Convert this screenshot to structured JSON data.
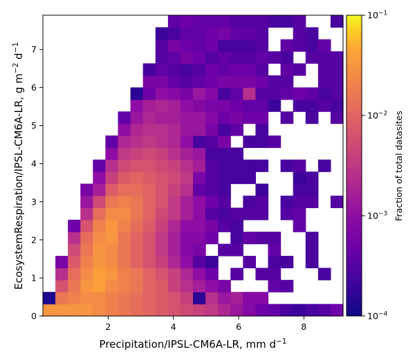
{
  "chart_data": {
    "type": "heatmap",
    "xlabel": "Precipitation/IPSL-CM6A-LR,  mm d",
    "xlabel_sup": "−1",
    "ylabel": "EcosystemRespiration/IPSL-CM6A-LR,  g m",
    "ylabel_sup1": "−2",
    "ylabel_mid": " d",
    "ylabel_sup2": "−1",
    "xlim": [
      0.0,
      9.2
    ],
    "ylim": [
      0.0,
      7.9
    ],
    "xticks": [
      2,
      4,
      6,
      8
    ],
    "yticks": [
      0,
      1,
      2,
      3,
      4,
      5,
      6,
      7
    ],
    "x_tick_labels": [
      "2",
      "4",
      "6",
      "8"
    ],
    "y_tick_labels": [
      "0",
      "1",
      "2",
      "3",
      "4",
      "5",
      "6",
      "7"
    ],
    "colormap": "plasma",
    "color_scale": "log",
    "colorbar": {
      "label": "Fraction of total datasites",
      "range": [
        0.0001,
        0.1
      ],
      "tick_values": [
        0.0001,
        0.001,
        0.01,
        0.1
      ],
      "tick_base": [
        "10",
        "10",
        "10",
        "10"
      ],
      "tick_exp": [
        "−4",
        "−3",
        "−2",
        "−1"
      ]
    },
    "bin_grid": {
      "columns": 24,
      "rows": 25
    },
    "log10_fraction_rows_bottom_to_top": [
      [
        -1.5,
        -1.5,
        -1.5,
        -1.5,
        -1.6,
        -1.7,
        -1.8,
        -1.9,
        -2.0,
        -2.1,
        -2.2,
        -2.3,
        -2.4,
        -2.5,
        -2.7,
        -2.9,
        -3.1,
        -3.3,
        -3.4,
        -3.6,
        -3.7,
        -3.6,
        -3.5,
        -3.3
      ],
      [
        -3.9,
        -1.8,
        -1.7,
        -1.6,
        -1.6,
        -1.7,
        -1.8,
        -1.9,
        -2.0,
        -2.1,
        -2.2,
        -2.4,
        -3.8,
        -2.6,
        -2.9,
        -2.8,
        -3.1,
        -3.1,
        null,
        null,
        null,
        null,
        null,
        null
      ],
      [
        null,
        -2.2,
        -1.8,
        -1.5,
        -1.4,
        -1.6,
        -1.7,
        -1.8,
        -2.0,
        -2.1,
        -2.4,
        -2.6,
        -2.8,
        -3.0,
        -3.2,
        null,
        null,
        null,
        -3.4,
        -3.5,
        null,
        null,
        null,
        null
      ],
      [
        null,
        -2.6,
        -1.9,
        -1.6,
        -1.4,
        -1.5,
        -1.7,
        -1.8,
        -2.0,
        -2.2,
        -2.4,
        -2.7,
        -3.0,
        -3.3,
        null,
        -3.5,
        null,
        -3.5,
        -3.5,
        null,
        null,
        null,
        -3.6,
        null
      ],
      [
        null,
        -3.2,
        -2.1,
        -1.7,
        -1.5,
        -1.6,
        -1.8,
        -2.0,
        -2.2,
        -2.4,
        -2.7,
        -3.0,
        -3.5,
        -3.7,
        null,
        null,
        -3.5,
        null,
        -3.6,
        -3.6,
        null,
        -3.6,
        null,
        null
      ],
      [
        null,
        null,
        -2.3,
        -1.8,
        -1.5,
        -1.6,
        -1.8,
        -2.0,
        -2.2,
        -2.5,
        -2.8,
        -3.1,
        -3.2,
        null,
        -3.5,
        -3.5,
        null,
        null,
        -3.4,
        null,
        null,
        -3.6,
        null,
        null
      ],
      [
        null,
        null,
        -2.6,
        -1.9,
        -1.6,
        -1.5,
        -1.8,
        -2.0,
        -2.2,
        -2.5,
        -2.8,
        -3.1,
        -3.1,
        -3.3,
        null,
        -3.6,
        -3.4,
        -3.5,
        -3.5,
        null,
        null,
        -3.6,
        null,
        null
      ],
      [
        null,
        null,
        -3.3,
        -2.2,
        -1.7,
        -1.5,
        -1.7,
        -1.9,
        -2.1,
        -2.4,
        -2.7,
        -3.0,
        -3.0,
        -3.2,
        -3.5,
        -3.6,
        null,
        null,
        null,
        null,
        -3.4,
        null,
        null,
        null
      ],
      [
        null,
        null,
        null,
        -2.6,
        -1.9,
        -1.6,
        -1.6,
        -1.8,
        -2.0,
        -2.3,
        -2.5,
        -2.8,
        -3.0,
        -3.5,
        -3.6,
        -3.5,
        -3.5,
        -3.5,
        null,
        -3.5,
        -3.4,
        null,
        null,
        null
      ],
      [
        null,
        null,
        null,
        -2.9,
        -2.3,
        -1.8,
        -1.7,
        -1.8,
        -2.0,
        -2.2,
        -2.5,
        -2.8,
        -3.0,
        -3.3,
        -3.5,
        null,
        -3.6,
        -3.5,
        null,
        -3.6,
        -3.5,
        -3.5,
        null,
        -3.5
      ],
      [
        null,
        null,
        null,
        -3.2,
        -2.8,
        -2.1,
        -1.9,
        -1.9,
        -2.0,
        -2.2,
        -2.4,
        -2.6,
        -3.4,
        -3.5,
        -3.6,
        null,
        null,
        -3.7,
        null,
        null,
        -3.6,
        -3.6,
        null,
        null
      ],
      [
        null,
        null,
        null,
        null,
        -3.0,
        -2.4,
        -2.1,
        -2.0,
        -2.1,
        -2.2,
        -2.3,
        -2.5,
        -3.2,
        -3.5,
        -3.6,
        -3.6,
        -3.6,
        null,
        null,
        null,
        -3.7,
        -3.6,
        null,
        null
      ],
      [
        null,
        null,
        null,
        null,
        -3.4,
        -2.6,
        -2.3,
        -2.2,
        -2.2,
        -2.3,
        -2.4,
        -2.6,
        -2.8,
        -3.5,
        -3.6,
        -3.6,
        -3.6,
        -3.6,
        null,
        -3.6,
        -3.5,
        null,
        -3.6,
        null
      ],
      [
        null,
        null,
        null,
        null,
        null,
        -3.0,
        -2.5,
        -2.4,
        -2.3,
        -2.4,
        -2.6,
        -2.8,
        -2.9,
        -3.6,
        -3.6,
        -3.6,
        null,
        null,
        null,
        null,
        null,
        null,
        null,
        null
      ],
      [
        null,
        null,
        null,
        null,
        null,
        -3.4,
        -2.7,
        -2.6,
        -2.5,
        -2.6,
        -2.7,
        -3.0,
        -3.6,
        -3.5,
        -3.2,
        null,
        -3.6,
        -3.6,
        -3.5,
        null,
        null,
        null,
        null,
        null
      ],
      [
        null,
        null,
        null,
        null,
        null,
        null,
        -3.0,
        -2.7,
        -2.6,
        -2.6,
        -2.7,
        -2.9,
        -2.9,
        -3.2,
        -3.6,
        -3.4,
        null,
        -3.6,
        null,
        null,
        null,
        null,
        null,
        null
      ],
      [
        null,
        null,
        null,
        null,
        null,
        null,
        -3.4,
        -2.9,
        -2.7,
        -2.8,
        -2.8,
        -2.9,
        -2.9,
        -3.1,
        -3.3,
        -3.2,
        -3.3,
        -3.3,
        null,
        -3.5,
        null,
        -3.6,
        null,
        -3.5
      ],
      [
        null,
        null,
        null,
        null,
        null,
        null,
        null,
        -3.0,
        -2.8,
        -2.7,
        -2.8,
        -3.0,
        -3.1,
        -3.2,
        -3.2,
        -3.3,
        -3.4,
        -3.4,
        -3.7,
        null,
        -3.6,
        -3.6,
        -3.5,
        -3.6
      ],
      [
        null,
        null,
        null,
        null,
        null,
        null,
        null,
        -3.8,
        -3.3,
        -3.0,
        -3.1,
        -3.2,
        -2.9,
        -3.1,
        -3.6,
        -3.4,
        -2.6,
        -3.5,
        -3.5,
        -3.4,
        -3.3,
        -3.4,
        -3.6,
        -3.5
      ],
      [
        null,
        null,
        null,
        null,
        null,
        null,
        null,
        null,
        -3.2,
        -3.2,
        -3.4,
        -3.5,
        -3.4,
        -3.3,
        -3.2,
        -3.2,
        -3.2,
        -3.3,
        -3.5,
        -3.5,
        null,
        null,
        -3.5,
        -3.5
      ],
      [
        null,
        null,
        null,
        null,
        null,
        null,
        null,
        null,
        -3.6,
        -3.4,
        -3.5,
        -3.6,
        -3.5,
        -3.3,
        -3.4,
        -3.3,
        -3.3,
        -3.5,
        null,
        -3.4,
        -3.5,
        null,
        -3.5,
        -3.5
      ],
      [
        null,
        null,
        null,
        null,
        null,
        null,
        null,
        null,
        null,
        -3.5,
        -3.4,
        -3.2,
        -3.3,
        -3.5,
        -3.4,
        -3.5,
        -3.5,
        -3.4,
        -3.5,
        -3.6,
        null,
        -3.5,
        -3.5,
        -3.5
      ],
      [
        null,
        null,
        null,
        null,
        null,
        null,
        null,
        null,
        null,
        -3.5,
        -3.2,
        -3.3,
        -3.4,
        -3.3,
        -3.6,
        -3.6,
        -3.6,
        -3.5,
        null,
        -3.4,
        -3.5,
        -3.6,
        -3.4,
        null
      ],
      [
        null,
        null,
        null,
        null,
        null,
        null,
        null,
        null,
        null,
        -3.7,
        -3.6,
        -3.4,
        -3.4,
        -3.3,
        -3.2,
        -3.4,
        -3.4,
        -3.5,
        null,
        null,
        -3.5,
        -3.6,
        null,
        null
      ],
      [
        null,
        null,
        null,
        null,
        null,
        null,
        null,
        null,
        null,
        null,
        -3.4,
        -3.3,
        -3.4,
        -3.4,
        -3.4,
        -3.5,
        -3.5,
        -3.5,
        -3.6,
        -3.6,
        -3.5,
        null,
        null,
        -3.6
      ]
    ]
  }
}
